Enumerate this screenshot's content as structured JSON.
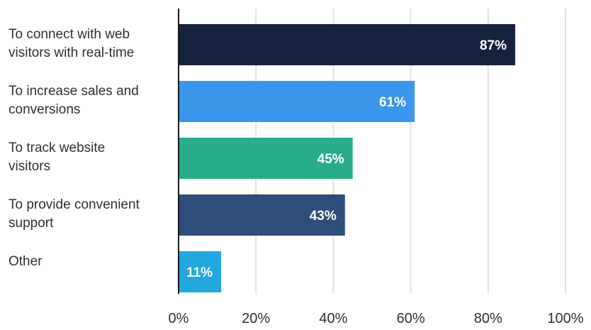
{
  "chart_data": {
    "type": "bar",
    "orientation": "horizontal",
    "title": "",
    "xlabel": "",
    "ylabel": "",
    "xlim": [
      0,
      100
    ],
    "grid": "vertical",
    "legend": "none",
    "x_ticks": [
      "0%",
      "20%",
      "40%",
      "60%",
      "80%",
      "100%"
    ],
    "categories": [
      [
        "To connect with web",
        "visitors with real-time"
      ],
      [
        "To increase sales and",
        "conversions"
      ],
      [
        "To track website",
        "visitors"
      ],
      [
        "To provide convenient",
        "support"
      ],
      [
        "Other"
      ]
    ],
    "values": [
      87,
      61,
      45,
      43,
      11
    ],
    "value_labels": [
      "87%",
      "61%",
      "45%",
      "43%",
      "11%"
    ],
    "colors": [
      "#16213d",
      "#3a97ec",
      "#27ad8a",
      "#2e4e7a",
      "#22a8de"
    ],
    "gridline_color": "#e3e3e3",
    "axis_color": "#1a1a1a"
  }
}
